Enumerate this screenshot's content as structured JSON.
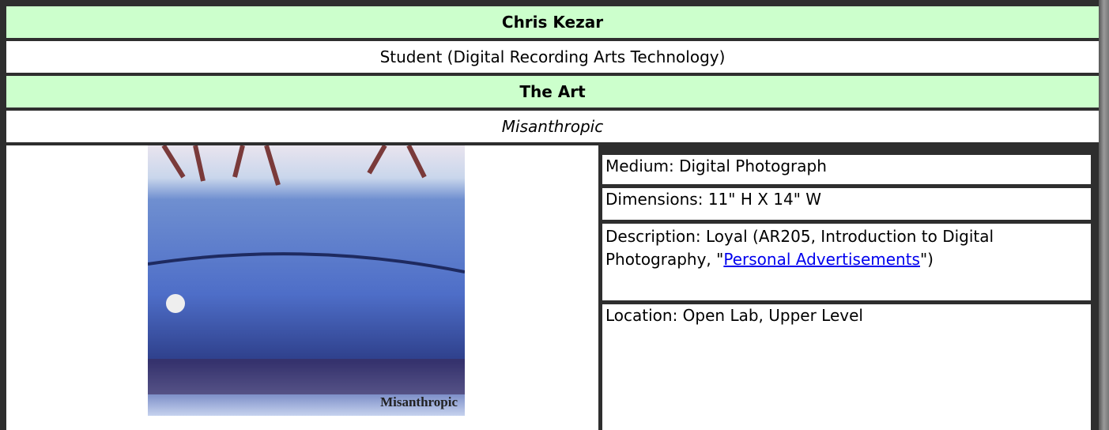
{
  "header": {
    "name": "Chris Kezar",
    "role": "Student (Digital Recording Arts Technology)"
  },
  "section": {
    "title": "The Art",
    "work_title": "Misanthropic"
  },
  "image": {
    "caption": "Misanthropic"
  },
  "details": {
    "medium": "Medium: Digital Photograph",
    "dimensions": "Dimensions: 11\" H X 14\" W",
    "description_prefix": "Description: Loyal (AR205, Introduction to Digital Photography, \"",
    "description_link": "Personal Advertisements",
    "description_suffix": "\")",
    "location": "Location: Open Lab, Upper Level"
  }
}
